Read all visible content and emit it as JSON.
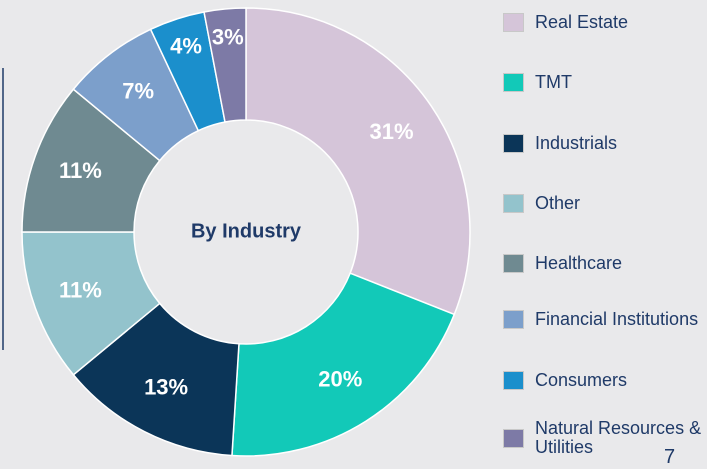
{
  "chart_data": {
    "type": "donut",
    "center_label": "By Industry",
    "categories": [
      "Real Estate",
      "TMT",
      "Industrials",
      "Other",
      "Healthcare",
      "Financial Institutions",
      "Consumers",
      "Natural Resources & Utilities"
    ],
    "values": [
      31,
      20,
      13,
      11,
      11,
      7,
      4,
      3
    ],
    "value_labels": [
      "31%",
      "20%",
      "13%",
      "11%",
      "11%",
      "7%",
      "4%",
      "3%"
    ],
    "colors": [
      "#d5c5d9",
      "#12c9b8",
      "#0b3558",
      "#93c3cc",
      "#6f8a91",
      "#7c9fcb",
      "#1b8fcc",
      "#7d7aa6"
    ],
    "legend": "right"
  },
  "page_number": "7"
}
